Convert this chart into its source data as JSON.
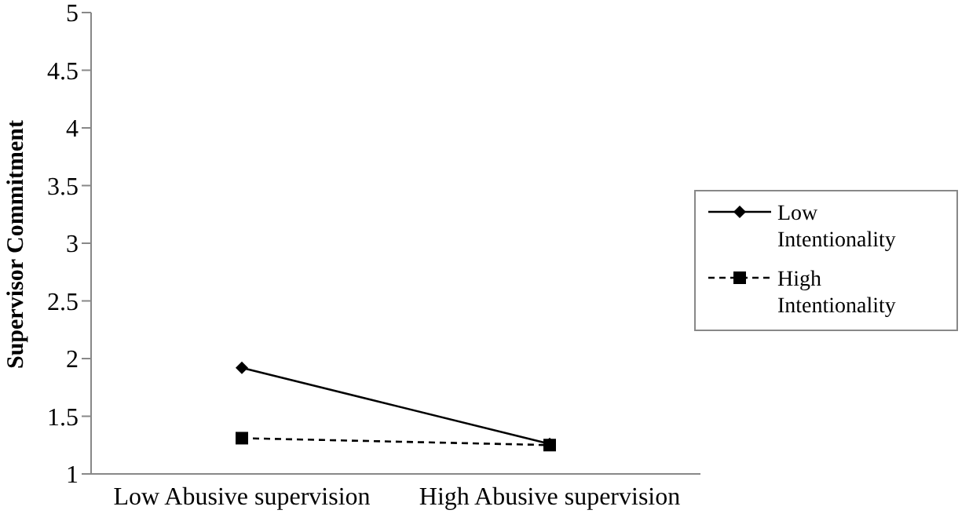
{
  "chart_data": {
    "type": "line",
    "ylabel": "Supervisor Commitment",
    "categories": [
      "Low Abusive supervision",
      "High Abusive supervision"
    ],
    "series": [
      {
        "name": "Low Intentionality",
        "color": "#000000",
        "values": [
          1.92,
          1.26
        ],
        "marker": "diamond",
        "line_style": "solid"
      },
      {
        "name": "High Intentionality",
        "color": "#000000",
        "values": [
          1.31,
          1.25
        ],
        "marker": "square",
        "line_style": "dashed"
      }
    ],
    "ylim": [
      1,
      5
    ],
    "yticks": [
      1,
      1.5,
      2,
      2.5,
      3,
      3.5,
      4,
      4.5,
      5
    ],
    "legend": "right"
  }
}
